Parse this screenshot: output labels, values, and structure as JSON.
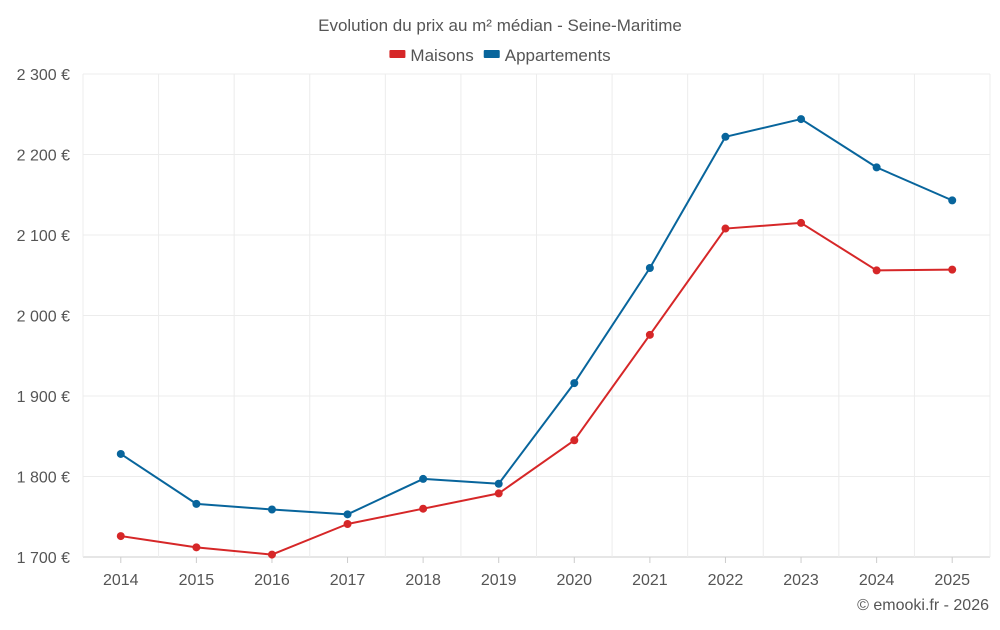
{
  "chart_data": {
    "type": "line",
    "title": "Evolution du prix au m² médian - Seine-Maritime",
    "xlabel": "",
    "ylabel": "",
    "categories": [
      "2014",
      "2015",
      "2016",
      "2017",
      "2018",
      "2019",
      "2020",
      "2021",
      "2022",
      "2023",
      "2024",
      "2025"
    ],
    "series": [
      {
        "name": "Maisons",
        "color": "#d62728",
        "values": [
          1726,
          1712,
          1703,
          1741,
          1760,
          1779,
          1845,
          1976,
          2108,
          2115,
          2056,
          2057
        ]
      },
      {
        "name": "Appartements",
        "color": "#08659c",
        "values": [
          1828,
          1766,
          1759,
          1753,
          1797,
          1791,
          1916,
          2059,
          2222,
          2244,
          2184,
          2143
        ]
      }
    ],
    "ylim": [
      1700,
      2300
    ],
    "yticks": [
      1700,
      1800,
      1900,
      2000,
      2100,
      2200,
      2300
    ],
    "ytick_labels": [
      "1 700 €",
      "1 800 €",
      "1 900 €",
      "2 000 €",
      "2 100 €",
      "2 200 €",
      "2 300 €"
    ],
    "grid": true,
    "legend": "top-center"
  },
  "footer": {
    "credit": "© emooki.fr - 2026"
  }
}
